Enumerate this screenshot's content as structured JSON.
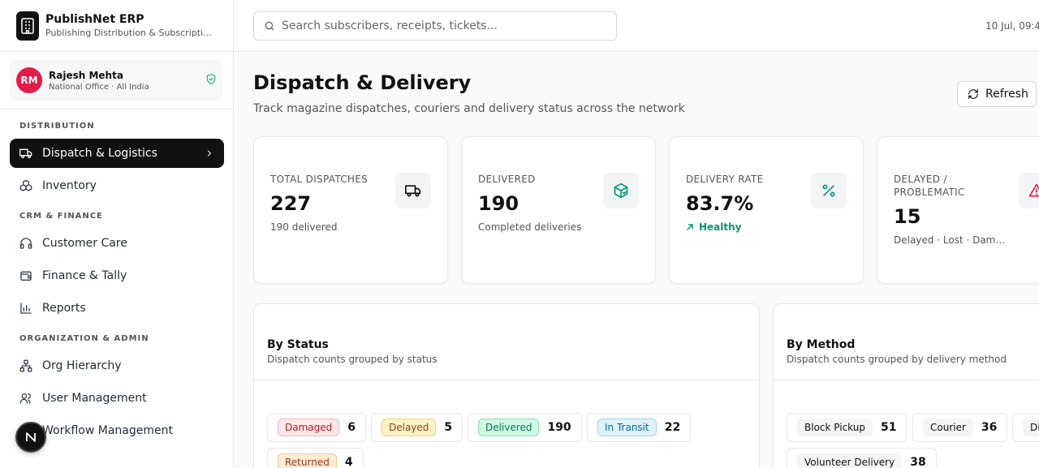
{
  "brand": {
    "title": "PublishNet ERP",
    "subtitle": "Publishing Distribution & Subscription Management"
  },
  "user": {
    "initials": "RM",
    "name": "Rajesh Mehta",
    "role": "National Office · All India"
  },
  "nav": {
    "sections": [
      {
        "title": "DISTRIBUTION",
        "items": [
          {
            "label": "Dispatch & Logistics",
            "active": true
          },
          {
            "label": "Inventory"
          }
        ]
      },
      {
        "title": "CRM & FINANCE",
        "items": [
          {
            "label": "Customer Care"
          },
          {
            "label": "Finance & Tally"
          },
          {
            "label": "Reports"
          }
        ]
      },
      {
        "title": "ORGANIZATION & ADMIN",
        "items": [
          {
            "label": "Org Hierarchy"
          },
          {
            "label": "User Management"
          },
          {
            "label": "Workflow Management"
          }
        ]
      }
    ]
  },
  "fab": {
    "label": "N"
  },
  "search": {
    "placeholder": "Search subscribers, receipts, tickets..."
  },
  "datetime": "10 Jul, 09:4",
  "page": {
    "title": "Dispatch & Delivery",
    "subtitle": "Track magazine dispatches, couriers and delivery status across the network",
    "refresh_label": "Refresh"
  },
  "stats": [
    {
      "label": "TOTAL DISPATCHES",
      "value": "227",
      "note": "190 delivered",
      "icon": "truck-icon"
    },
    {
      "label": "DELIVERED",
      "value": "190",
      "note": "Completed deliveries",
      "icon": "package-check-icon"
    },
    {
      "label": "DELIVERY RATE",
      "value": "83.7%",
      "note": "Healthy",
      "icon": "percent-icon",
      "note_color": "#059669"
    },
    {
      "label": "DELAYED / PROBLEMATIC",
      "value": "15",
      "note": "Delayed · Lost · Damaged",
      "icon": "alert-triangle-icon",
      "icon_color": "#e11d48"
    }
  ],
  "by_status": {
    "title": "By Status",
    "subtitle": "Dispatch counts grouped by status",
    "items": [
      {
        "label": "Damaged",
        "count": "6"
      },
      {
        "label": "Delayed",
        "count": "5"
      },
      {
        "label": "Delivered",
        "count": "190"
      },
      {
        "label": "In Transit",
        "count": "22"
      },
      {
        "label": "Returned",
        "count": "4"
      }
    ]
  },
  "by_method": {
    "title": "By Method",
    "subtitle": "Dispatch counts grouped by delivery method",
    "items": [
      {
        "label": "Block Pickup",
        "count": "51"
      },
      {
        "label": "Courier",
        "count": "36"
      },
      {
        "label": "Di",
        "count": ""
      },
      {
        "label": "Volunteer Delivery",
        "count": "38"
      }
    ]
  },
  "colors": {
    "accent": "#111111",
    "avatar": "#e11d48",
    "healthy": "#059669",
    "danger": "#e11d48"
  }
}
